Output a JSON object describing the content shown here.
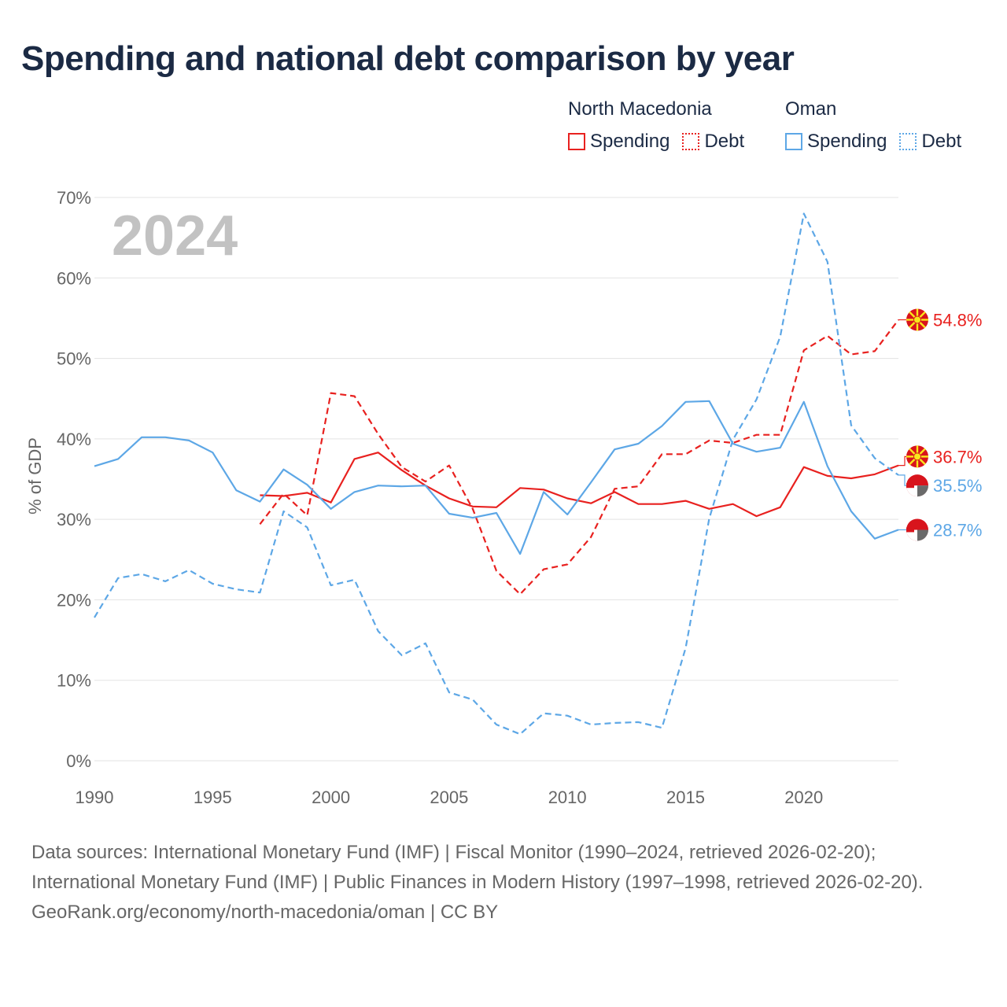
{
  "title": "Spending and national debt comparison by year",
  "legend": {
    "groups": [
      {
        "name": "North Macedonia",
        "spending": "Spending",
        "debt": "Debt"
      },
      {
        "name": "Oman",
        "spending": "Spending",
        "debt": "Debt"
      }
    ]
  },
  "colors": {
    "north_macedonia": "#e8211f",
    "oman": "#5da7e6",
    "grid": "#e3e3e3",
    "axis_text": "#666666",
    "year_watermark": "#c2c2c2"
  },
  "footer": {
    "sources": "Data sources: International Monetary Fund (IMF) | Fiscal Monitor (1990–2024, retrieved 2026-02-20); International Monetary Fund (IMF) | Public Finances in Modern History (1997–1998, retrieved 2026-02-20).",
    "credit": "GeoRank.org/economy/north-macedonia/oman | CC BY"
  },
  "chart_data": {
    "type": "line",
    "year_label": "2024",
    "ylabel": "% of GDP",
    "xlim": [
      1990,
      2024
    ],
    "ylim": [
      0,
      70
    ],
    "x_ticks": [
      "1990",
      "1995",
      "2000",
      "2005",
      "2010",
      "2015",
      "2020"
    ],
    "x_tick_values": [
      1990,
      1995,
      2000,
      2005,
      2010,
      2015,
      2020
    ],
    "y_ticks": [
      "0%",
      "10%",
      "20%",
      "30%",
      "40%",
      "50%",
      "60%",
      "70%"
    ],
    "y_tick_values": [
      0,
      10,
      20,
      30,
      40,
      50,
      60,
      70
    ],
    "series": [
      {
        "name": "North Macedonia Spending",
        "country": "north_macedonia",
        "style": "solid",
        "x": [
          1997,
          1998,
          1999,
          2000,
          2001,
          2002,
          2003,
          2004,
          2005,
          2006,
          2007,
          2008,
          2009,
          2010,
          2011,
          2012,
          2013,
          2014,
          2015,
          2016,
          2017,
          2018,
          2019,
          2020,
          2021,
          2022,
          2023,
          2024
        ],
        "values": [
          33.0,
          32.9,
          33.3,
          32.1,
          37.5,
          38.3,
          36.1,
          34.2,
          32.6,
          31.6,
          31.5,
          33.9,
          33.7,
          32.6,
          32.0,
          33.4,
          31.9,
          31.9,
          32.3,
          31.3,
          31.9,
          30.4,
          31.5,
          36.5,
          35.4,
          35.1,
          35.6,
          36.7
        ],
        "end_label": "36.7%"
      },
      {
        "name": "North Macedonia Debt",
        "country": "north_macedonia",
        "style": "dashed",
        "x": [
          1997,
          1998,
          1999,
          2000,
          2001,
          2002,
          2003,
          2004,
          2005,
          2006,
          2007,
          2008,
          2009,
          2010,
          2011,
          2012,
          2013,
          2014,
          2015,
          2016,
          2017,
          2018,
          2019,
          2020,
          2021,
          2022,
          2023,
          2024
        ],
        "values": [
          29.4,
          33.2,
          30.5,
          45.7,
          45.3,
          40.6,
          36.5,
          34.7,
          36.7,
          31.3,
          23.6,
          20.7,
          23.8,
          24.4,
          27.8,
          33.8,
          34.1,
          38.1,
          38.1,
          39.8,
          39.5,
          40.5,
          40.5,
          51.0,
          52.8,
          50.5,
          50.9,
          54.8
        ],
        "end_label": "54.8%"
      },
      {
        "name": "Oman Spending",
        "country": "oman",
        "style": "solid",
        "x": [
          1990,
          1991,
          1992,
          1993,
          1994,
          1995,
          1996,
          1997,
          1998,
          1999,
          2000,
          2001,
          2002,
          2003,
          2004,
          2005,
          2006,
          2007,
          2008,
          2009,
          2010,
          2011,
          2012,
          2013,
          2014,
          2015,
          2016,
          2017,
          2018,
          2019,
          2020,
          2021,
          2022,
          2023,
          2024
        ],
        "values": [
          36.6,
          37.5,
          40.2,
          40.2,
          39.8,
          38.3,
          33.6,
          32.2,
          36.2,
          34.3,
          31.3,
          33.4,
          34.2,
          34.1,
          34.2,
          30.7,
          30.2,
          30.8,
          25.7,
          33.4,
          30.6,
          34.6,
          38.7,
          39.4,
          41.6,
          44.6,
          44.7,
          39.4,
          38.4,
          38.9,
          44.6,
          36.6,
          31.0,
          27.6,
          28.7
        ],
        "end_label": "28.7%"
      },
      {
        "name": "Oman Debt",
        "country": "oman",
        "style": "dashed",
        "x": [
          1990,
          1991,
          1992,
          1993,
          1994,
          1995,
          1996,
          1997,
          1998,
          1999,
          2000,
          2001,
          2002,
          2003,
          2004,
          2005,
          2006,
          2007,
          2008,
          2009,
          2010,
          2011,
          2012,
          2013,
          2014,
          2015,
          2016,
          2017,
          2018,
          2019,
          2020,
          2021,
          2022,
          2023,
          2024
        ],
        "values": [
          17.8,
          22.7,
          23.2,
          22.3,
          23.7,
          22.0,
          21.3,
          20.9,
          31.0,
          29.0,
          21.8,
          22.5,
          16.1,
          13.1,
          14.6,
          8.5,
          7.6,
          4.5,
          3.3,
          5.9,
          5.6,
          4.5,
          4.7,
          4.8,
          4.1,
          14.0,
          30.1,
          39.9,
          44.9,
          52.7,
          68.0,
          62.0,
          41.7,
          37.6,
          35.5
        ],
        "end_label": "35.5%"
      }
    ]
  }
}
